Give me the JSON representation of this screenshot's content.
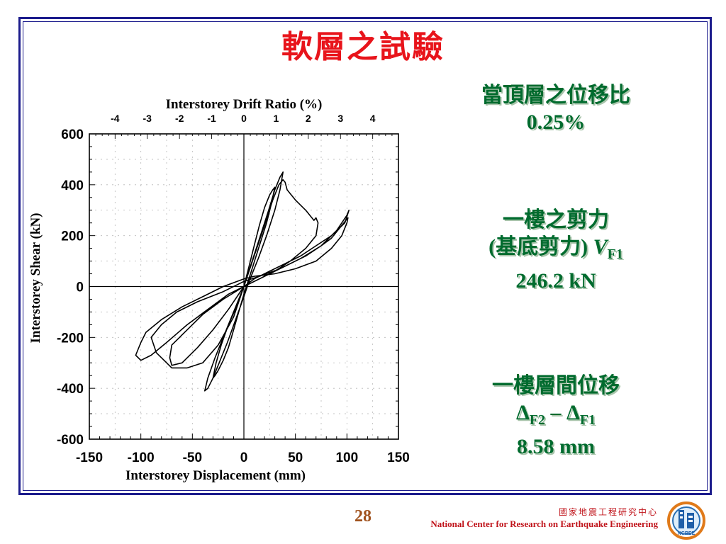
{
  "slide": {
    "title": "軟層之試驗",
    "page_number": "28",
    "org_zh": "國家地震工程研究中心",
    "org_en": "National Center for Research on Earthquake Engineering",
    "logo_text": "NCREE",
    "colors": {
      "title": "#e8141b",
      "note": "#006b2e",
      "border": "#1c1c8c",
      "org": "#c0141b"
    }
  },
  "notes": {
    "block1": {
      "line1": "當頂層之位移比",
      "line2": "0.25%"
    },
    "block2": {
      "line1": "一樓之剪力",
      "line2_prefix": "(基底剪力) ",
      "line2_var": "V",
      "line2_sub": "F1",
      "line3": "246.2 kN"
    },
    "block3": {
      "line1": "一樓層間位移",
      "delta": "Δ",
      "sub_a": "F2",
      "minus": " – ",
      "sub_b": "F1",
      "line3": "8.58 mm"
    }
  },
  "chart_data": {
    "type": "line",
    "title": "",
    "xlabel": "Interstorey Displacement (mm)",
    "ylabel": "Interstorey   Shear (kN)",
    "x2label": "Interstorey Drift Ratio (%)",
    "xlim": [
      -150,
      150
    ],
    "ylim": [
      -600,
      600
    ],
    "x2lim": [
      -4.8,
      4.8
    ],
    "xticks": [
      -150,
      -100,
      -50,
      0,
      50,
      100,
      150
    ],
    "yticks": [
      600,
      400,
      200,
      0,
      -200,
      -400,
      -600
    ],
    "x2ticks": [
      -4,
      -3,
      -2,
      -1,
      0,
      1,
      2,
      3,
      4
    ],
    "grid": true,
    "series": [
      {
        "name": "",
        "x": [
          0,
          5,
          10,
          15,
          20,
          25,
          28,
          30,
          27,
          22,
          15,
          8,
          0,
          -5,
          -10,
          -15,
          -20,
          -25,
          -28,
          -30,
          -27,
          -22,
          -15,
          -5,
          0,
          8,
          16,
          24,
          30,
          35,
          38,
          35,
          30,
          22,
          14,
          5,
          0,
          -8,
          -16,
          -24,
          -30,
          -35,
          -38,
          -35,
          -28,
          -18,
          -8,
          0,
          10,
          20,
          28,
          34,
          38,
          40,
          42,
          50,
          60,
          66,
          68,
          70,
          72,
          70,
          60,
          45,
          30,
          15,
          0,
          -20,
          -40,
          -55,
          -70,
          -72,
          -70,
          -60,
          -45,
          -30,
          -15,
          0,
          20,
          40,
          60,
          75,
          85,
          90,
          95,
          100,
          101,
          100,
          95,
          85,
          70,
          50,
          30,
          10,
          0,
          -20,
          -40,
          -60,
          -80,
          -95,
          -100,
          -105,
          -100,
          -90,
          -75,
          -55,
          -35,
          -15,
          0,
          10,
          25,
          40,
          55,
          70,
          85,
          98,
          102,
          100,
          90,
          75,
          55,
          35,
          15,
          0,
          -20,
          -45,
          -65,
          -80,
          -90,
          -85,
          -70,
          -55,
          -40,
          -25,
          -10,
          0
        ],
        "y": [
          0,
          80,
          160,
          240,
          310,
          360,
          380,
          390,
          330,
          250,
          160,
          70,
          -30,
          -100,
          -170,
          -240,
          -290,
          -330,
          -350,
          -360,
          -300,
          -230,
          -150,
          -60,
          0,
          100,
          200,
          300,
          380,
          430,
          450,
          380,
          300,
          200,
          110,
          20,
          -40,
          -130,
          -220,
          -300,
          -360,
          -400,
          -410,
          -360,
          -280,
          -180,
          -80,
          0,
          120,
          240,
          340,
          400,
          420,
          410,
          380,
          340,
          300,
          270,
          260,
          270,
          250,
          200,
          150,
          100,
          60,
          30,
          0,
          -50,
          -110,
          -170,
          -230,
          -280,
          -310,
          -300,
          -240,
          -170,
          -90,
          0,
          40,
          80,
          120,
          160,
          190,
          215,
          240,
          265,
          270,
          250,
          200,
          150,
          100,
          70,
          50,
          40,
          30,
          0,
          -40,
          -80,
          -130,
          -180,
          -220,
          -270,
          -290,
          -270,
          -220,
          -150,
          -90,
          -30,
          0,
          30,
          60,
          90,
          120,
          160,
          200,
          250,
          300,
          280,
          220,
          160,
          110,
          70,
          40,
          20,
          -20,
          -60,
          -100,
          -150,
          -200,
          -260,
          -320,
          -320,
          -300,
          -230,
          -120,
          0
        ],
        "color": "#000000"
      }
    ]
  }
}
